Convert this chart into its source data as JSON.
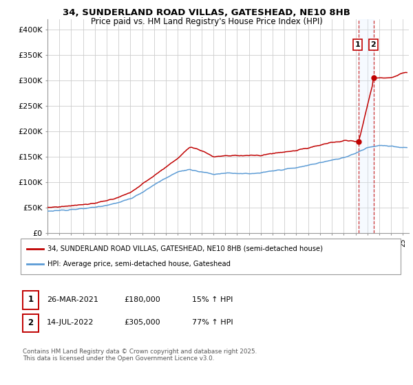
{
  "title": "34, SUNDERLAND ROAD VILLAS, GATESHEAD, NE10 8HB",
  "subtitle": "Price paid vs. HM Land Registry's House Price Index (HPI)",
  "ylabel_ticks": [
    "£0",
    "£50K",
    "£100K",
    "£150K",
    "£200K",
    "£250K",
    "£300K",
    "£350K",
    "£400K"
  ],
  "ytick_values": [
    0,
    50000,
    100000,
    150000,
    200000,
    250000,
    300000,
    350000,
    400000
  ],
  "ylim": [
    0,
    420000
  ],
  "xlim_start": 1995,
  "xlim_end": 2025.5,
  "hpi_color": "#5b9bd5",
  "price_color": "#c00000",
  "marker_color": "#c00000",
  "t1_x": 2021.23,
  "t1_y": 180000,
  "t2_x": 2022.54,
  "t2_y": 305000,
  "legend_label_price": "34, SUNDERLAND ROAD VILLAS, GATESHEAD, NE10 8HB (semi-detached house)",
  "legend_label_hpi": "HPI: Average price, semi-detached house, Gateshead",
  "table_row1": [
    "1",
    "26-MAR-2021",
    "£180,000",
    "15% ↑ HPI"
  ],
  "table_row2": [
    "2",
    "14-JUL-2022",
    "£305,000",
    "77% ↑ HPI"
  ],
  "footnote": "Contains HM Land Registry data © Crown copyright and database right 2025.\nThis data is licensed under the Open Government Licence v3.0.",
  "bg_color": "#ffffff",
  "grid_color": "#cccccc",
  "shade_color": "#ddeeff"
}
